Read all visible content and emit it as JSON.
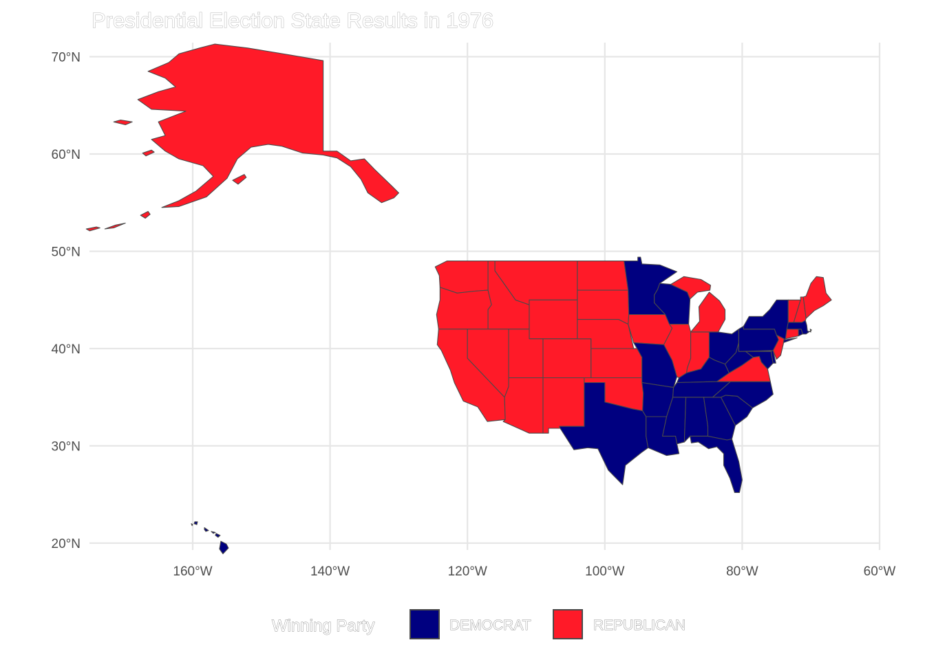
{
  "title": "Presidential Election State Results in 1976",
  "legend": {
    "title": "Winning Party",
    "entries": [
      {
        "label": "DEMOCRAT",
        "color": "#000080"
      },
      {
        "label": "REPUBLICAN",
        "color": "#ff1a28"
      }
    ]
  },
  "axes": {
    "x_ticks": [
      {
        "label": "160°W",
        "lon": -160
      },
      {
        "label": "140°W",
        "lon": -140
      },
      {
        "label": "120°W",
        "lon": -120
      },
      {
        "label": "100°W",
        "lon": -100
      },
      {
        "label": "80°W",
        "lon": -80
      },
      {
        "label": "60°W",
        "lon": -60
      }
    ],
    "y_ticks": [
      {
        "label": "70°N",
        "lat": 70
      },
      {
        "label": "60°N",
        "lat": 60
      },
      {
        "label": "50°N",
        "lat": 50
      },
      {
        "label": "40°N",
        "lat": 40
      },
      {
        "label": "30°N",
        "lat": 30
      },
      {
        "label": "20°N",
        "lat": 20
      }
    ],
    "lon_range": [
      -175,
      -60
    ],
    "lat_range": [
      19,
      71.5
    ],
    "grid": true
  },
  "states": [
    {
      "name": "Alaska",
      "winner": "REPUBLICAN"
    },
    {
      "name": "Hawaii",
      "winner": "DEMOCRAT"
    },
    {
      "name": "Washington",
      "winner": "REPUBLICAN"
    },
    {
      "name": "Oregon",
      "winner": "REPUBLICAN"
    },
    {
      "name": "California",
      "winner": "REPUBLICAN"
    },
    {
      "name": "Idaho",
      "winner": "REPUBLICAN"
    },
    {
      "name": "Nevada",
      "winner": "REPUBLICAN"
    },
    {
      "name": "Montana",
      "winner": "REPUBLICAN"
    },
    {
      "name": "Wyoming",
      "winner": "REPUBLICAN"
    },
    {
      "name": "Utah",
      "winner": "REPUBLICAN"
    },
    {
      "name": "Arizona",
      "winner": "REPUBLICAN"
    },
    {
      "name": "Colorado",
      "winner": "REPUBLICAN"
    },
    {
      "name": "New Mexico",
      "winner": "REPUBLICAN"
    },
    {
      "name": "North Dakota",
      "winner": "REPUBLICAN"
    },
    {
      "name": "South Dakota",
      "winner": "REPUBLICAN"
    },
    {
      "name": "Nebraska",
      "winner": "REPUBLICAN"
    },
    {
      "name": "Kansas",
      "winner": "REPUBLICAN"
    },
    {
      "name": "Oklahoma",
      "winner": "REPUBLICAN"
    },
    {
      "name": "Texas",
      "winner": "DEMOCRAT"
    },
    {
      "name": "Minnesota",
      "winner": "DEMOCRAT"
    },
    {
      "name": "Iowa",
      "winner": "REPUBLICAN"
    },
    {
      "name": "Missouri",
      "winner": "DEMOCRAT"
    },
    {
      "name": "Arkansas",
      "winner": "DEMOCRAT"
    },
    {
      "name": "Louisiana",
      "winner": "DEMOCRAT"
    },
    {
      "name": "Wisconsin",
      "winner": "DEMOCRAT"
    },
    {
      "name": "Illinois",
      "winner": "REPUBLICAN"
    },
    {
      "name": "Michigan",
      "winner": "REPUBLICAN"
    },
    {
      "name": "Indiana",
      "winner": "REPUBLICAN"
    },
    {
      "name": "Ohio",
      "winner": "DEMOCRAT"
    },
    {
      "name": "Kentucky",
      "winner": "DEMOCRAT"
    },
    {
      "name": "Tennessee",
      "winner": "DEMOCRAT"
    },
    {
      "name": "Mississippi",
      "winner": "DEMOCRAT"
    },
    {
      "name": "Alabama",
      "winner": "DEMOCRAT"
    },
    {
      "name": "Georgia",
      "winner": "DEMOCRAT"
    },
    {
      "name": "Florida",
      "winner": "DEMOCRAT"
    },
    {
      "name": "South Carolina",
      "winner": "DEMOCRAT"
    },
    {
      "name": "North Carolina",
      "winner": "DEMOCRAT"
    },
    {
      "name": "Virginia",
      "winner": "REPUBLICAN"
    },
    {
      "name": "West Virginia",
      "winner": "DEMOCRAT"
    },
    {
      "name": "Maryland",
      "winner": "DEMOCRAT"
    },
    {
      "name": "Delaware",
      "winner": "DEMOCRAT"
    },
    {
      "name": "Pennsylvania",
      "winner": "DEMOCRAT"
    },
    {
      "name": "New Jersey",
      "winner": "REPUBLICAN"
    },
    {
      "name": "New York",
      "winner": "DEMOCRAT"
    },
    {
      "name": "Connecticut",
      "winner": "REPUBLICAN"
    },
    {
      "name": "Rhode Island",
      "winner": "DEMOCRAT"
    },
    {
      "name": "Massachusetts",
      "winner": "DEMOCRAT"
    },
    {
      "name": "Vermont",
      "winner": "REPUBLICAN"
    },
    {
      "name": "New Hampshire",
      "winner": "REPUBLICAN"
    },
    {
      "name": "Maine",
      "winner": "REPUBLICAN"
    }
  ]
}
